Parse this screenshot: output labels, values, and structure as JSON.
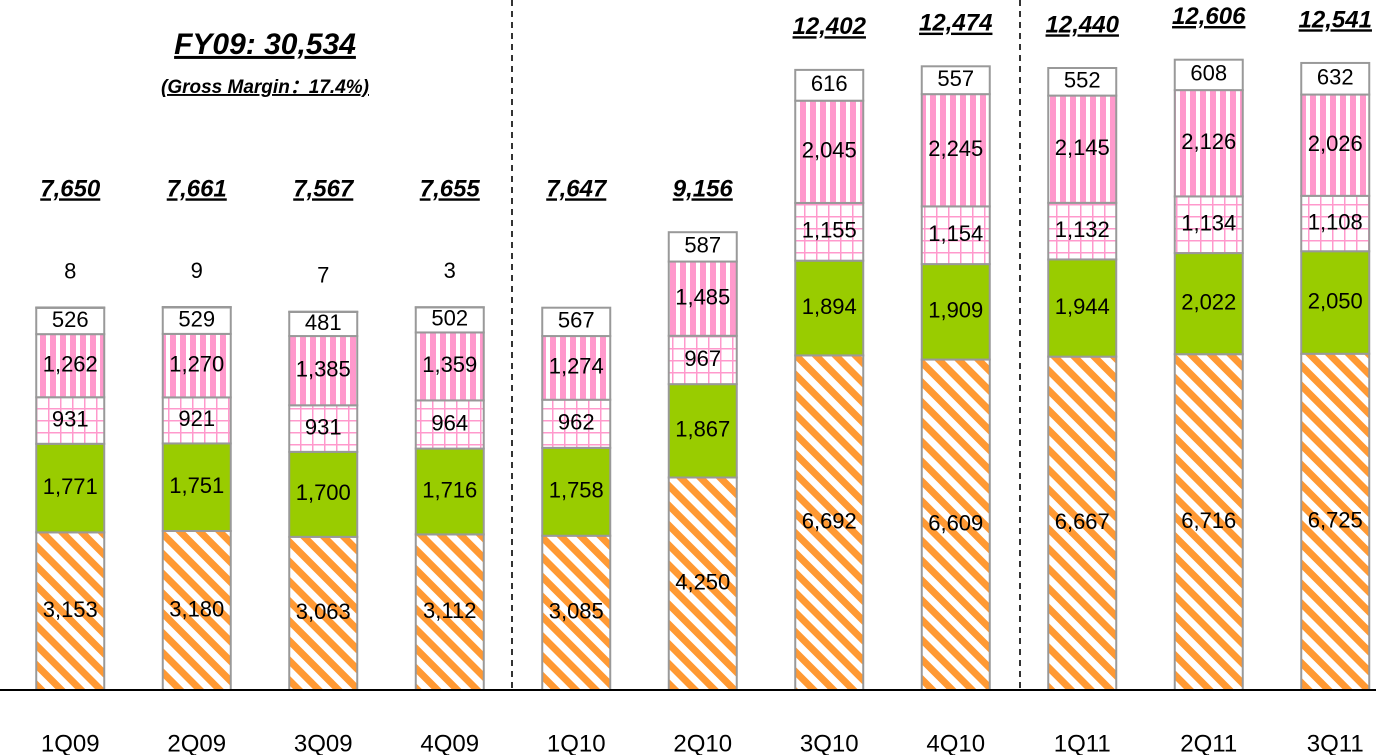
{
  "chart_data": {
    "type": "stacked_bar",
    "annotations": [
      "FY09: 30,534",
      "(Gross Margin：17.4%)"
    ],
    "categories": [
      "1Q09",
      "2Q09",
      "3Q09",
      "4Q09",
      "1Q10",
      "2Q10",
      "3Q10",
      "4Q10",
      "1Q11",
      "2Q11",
      "3Q11"
    ],
    "ylim": [
      0,
      13800
    ],
    "series": [
      {
        "color": "#ff9933",
        "pattern": "diagonal",
        "values": [
          3153,
          3180,
          3063,
          3112,
          3085,
          4250,
          6692,
          6609,
          6667,
          6716,
          6725
        ],
        "value_labels": [
          "3,153",
          "3,180",
          "3,063",
          "3,112",
          "3,085",
          "4,250",
          "6,692",
          "6,609",
          "6,667",
          "6,716",
          "6,725"
        ]
      },
      {
        "color": "#99cc00",
        "pattern": "solid",
        "values": [
          1771,
          1751,
          1700,
          1716,
          1758,
          1867,
          1894,
          1909,
          1944,
          2022,
          2050
        ],
        "value_labels": [
          "1,771",
          "1,751",
          "1,700",
          "1,716",
          "1,758",
          "1,867",
          "1,894",
          "1,909",
          "1,944",
          "2,022",
          "2,050"
        ]
      },
      {
        "color": "#ff99cc",
        "pattern": "grid",
        "values": [
          931,
          921,
          931,
          964,
          962,
          967,
          1155,
          1154,
          1132,
          1134,
          1108
        ],
        "value_labels": [
          "931",
          "921",
          "931",
          "964",
          "962",
          "967",
          "1,155",
          "1,154",
          "1,132",
          "1,134",
          "1,108"
        ]
      },
      {
        "color": "#ff99cc",
        "pattern": "vstripe",
        "values": [
          1262,
          1270,
          1385,
          1359,
          1274,
          1485,
          2045,
          2245,
          2145,
          2126,
          2026
        ],
        "value_labels": [
          "1,262",
          "1,270",
          "1,385",
          "1,359",
          "1,274",
          "1,485",
          "2,045",
          "2,245",
          "2,145",
          "2,126",
          "2,026"
        ]
      },
      {
        "color": "#ffffff",
        "pattern": "solid",
        "values": [
          526,
          529,
          481,
          502,
          567,
          587,
          616,
          557,
          552,
          608,
          632
        ]
      },
      {
        "color": "#999999",
        "pattern": "solid",
        "values": [
          8,
          9,
          7,
          3,
          null,
          null,
          null,
          null,
          null,
          null,
          null
        ]
      }
    ],
    "totals": [
      7650,
      7661,
      7567,
      7655,
      7647,
      9156,
      12402,
      12474,
      12440,
      12606,
      12541
    ],
    "total_labels": [
      "7,650",
      "7,661",
      "7,567",
      "7,655",
      "7,647",
      "9,156",
      "12,402",
      "12,474",
      "12,440",
      "12,606",
      "12,541"
    ]
  }
}
